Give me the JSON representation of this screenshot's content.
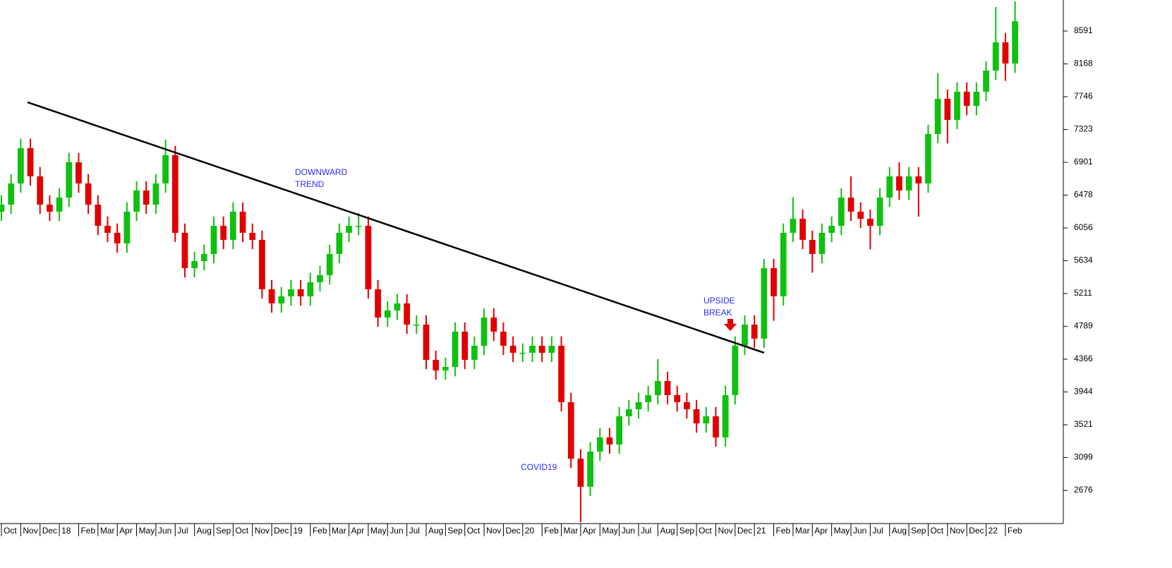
{
  "chart_data": {
    "type": "candlestick",
    "x": [
      0,
      0.5,
      1,
      1.5,
      2,
      2.5,
      3,
      3.5,
      4,
      4.5,
      5,
      5.5,
      6,
      6.5,
      7,
      7.5,
      8,
      8.5,
      9,
      9.5,
      10,
      10.5,
      11,
      11.5,
      12,
      12.5,
      13,
      13.5,
      14,
      14.5,
      15,
      15.5,
      16,
      16.5,
      17,
      17.5,
      18,
      18.5,
      19,
      19.5,
      20,
      20.5,
      21,
      21.5,
      22,
      22.5,
      23,
      23.5,
      24,
      24.5,
      25,
      25.5,
      26,
      26.5,
      27,
      27.5,
      28,
      28.5,
      29,
      29.5,
      30,
      30.5,
      31,
      31.5,
      32,
      32.5,
      33,
      33.5,
      34,
      34.5,
      35,
      35.5,
      36,
      36.5,
      37,
      37.5,
      38,
      38.5,
      39,
      39.5,
      40,
      40.5,
      41,
      41.5,
      42,
      42.5,
      43,
      43.5,
      44,
      44.5,
      45,
      45.5,
      46,
      46.5,
      47,
      47.5,
      48,
      48.5,
      49,
      49.5,
      50,
      50.5,
      51,
      51.5,
      52,
      52.5
    ],
    "open": [
      6265,
      6356,
      6629,
      7083,
      6720,
      6356,
      6265,
      6447,
      6901,
      6629,
      6356,
      6083,
      5993,
      5856,
      6265,
      6538,
      6356,
      6629,
      6992,
      5993,
      5538,
      5629,
      5720,
      6083,
      5902,
      6265,
      5993,
      5902,
      5266,
      5084,
      5175,
      5266,
      5175,
      5357,
      5447,
      5720,
      5993,
      6083,
      6083,
      5266,
      4902,
      4993,
      5084,
      4811,
      4811,
      4357,
      4221,
      4266,
      4720,
      4357,
      4539,
      4902,
      4720,
      4539,
      4448,
      4448,
      4539,
      4448,
      4539,
      3812,
      3085,
      2722,
      3176,
      3358,
      3267,
      3630,
      3721,
      3812,
      3903,
      4085,
      3903,
      3812,
      3721,
      3539,
      3630,
      3358,
      3903,
      4539,
      4811,
      4630,
      5538,
      5175,
      5993,
      6174,
      5902,
      5720,
      5993,
      6083,
      6447,
      6265,
      6174,
      6083,
      6447,
      6720,
      6538,
      6720,
      6629,
      7265,
      7719,
      7447,
      7810,
      7628,
      7810,
      8082,
      8446,
      8173
    ],
    "high": [
      6476,
      6749,
      7203,
      7203,
      6840,
      6476,
      6567,
      7021,
      7021,
      6749,
      6476,
      6203,
      6113,
      6385,
      6658,
      6658,
      6749,
      7192,
      7112,
      6113,
      5749,
      5840,
      6203,
      6203,
      6385,
      6385,
      6113,
      6022,
      5386,
      5295,
      5386,
      5386,
      5477,
      5567,
      5840,
      6113,
      6203,
      6250,
      6203,
      5386,
      5113,
      5204,
      5204,
      4931,
      4931,
      4477,
      4386,
      4840,
      4840,
      4659,
      5022,
      5022,
      4840,
      4659,
      4568,
      4659,
      4659,
      4659,
      4659,
      3932,
      3205,
      3296,
      3478,
      3478,
      3750,
      3841,
      3932,
      4023,
      4366,
      4205,
      4023,
      3932,
      3841,
      3750,
      3750,
      4023,
      4659,
      4931,
      4931,
      5658,
      5658,
      6113,
      6450,
      6294,
      6022,
      6113,
      6203,
      6567,
      6720,
      6385,
      6294,
      6567,
      6840,
      6901,
      6840,
      6840,
      7385,
      8050,
      7839,
      7930,
      7930,
      7930,
      8202,
      8900,
      8566,
      8973
    ],
    "low": [
      6145,
      6236,
      6509,
      6600,
      6236,
      6145,
      6145,
      6327,
      6509,
      6236,
      5963,
      5873,
      5736,
      5736,
      6145,
      6236,
      6236,
      6509,
      5873,
      5418,
      5418,
      5509,
      5600,
      5782,
      5782,
      5873,
      5782,
      5146,
      4964,
      4964,
      5055,
      5055,
      5055,
      5237,
      5327,
      5600,
      5873,
      5963,
      5146,
      4782,
      4782,
      4873,
      4691,
      4691,
      4237,
      4101,
      4101,
      4146,
      4237,
      4237,
      4419,
      4600,
      4419,
      4328,
      4328,
      4328,
      4328,
      4328,
      3692,
      2965,
      2267,
      2602,
      3056,
      3147,
      3147,
      3510,
      3601,
      3692,
      3783,
      3783,
      3692,
      3601,
      3419,
      3419,
      3238,
      3238,
      3783,
      4419,
      4510,
      4510,
      4860,
      5055,
      5873,
      5782,
      5480,
      5600,
      5873,
      5963,
      6145,
      6054,
      5780,
      5963,
      6327,
      6418,
      6418,
      6200,
      6509,
      7145,
      7145,
      7327,
      7508,
      7508,
      7690,
      7962,
      7950,
      8053
    ],
    "close": [
      6356,
      6629,
      7083,
      6720,
      6356,
      6265,
      6447,
      6901,
      6629,
      6356,
      6083,
      5993,
      5856,
      6265,
      6538,
      6356,
      6629,
      6992,
      5993,
      5538,
      5629,
      5720,
      6083,
      5902,
      6265,
      5993,
      5902,
      5266,
      5084,
      5175,
      5266,
      5175,
      5357,
      5447,
      5720,
      5993,
      6083,
      6083,
      5266,
      4902,
      4993,
      5084,
      4811,
      4811,
      4357,
      4221,
      4266,
      4720,
      4357,
      4539,
      4902,
      4720,
      4539,
      4448,
      4448,
      4539,
      4448,
      4539,
      3812,
      3085,
      2722,
      3176,
      3358,
      3267,
      3630,
      3721,
      3812,
      3903,
      4085,
      3903,
      3812,
      3721,
      3539,
      3630,
      3358,
      3903,
      4539,
      4811,
      4630,
      5538,
      5175,
      5993,
      6174,
      5902,
      5720,
      5993,
      6083,
      6447,
      6265,
      6174,
      6083,
      6447,
      6720,
      6538,
      6720,
      6629,
      7265,
      7719,
      7447,
      7810,
      7628,
      7810,
      8082,
      8446,
      8173,
      8718
    ],
    "up_color": "#10c010",
    "down_color": "#e00000",
    "trendline": {
      "x": [
        1.35,
        39.5
      ],
      "values": [
        7674,
        4448
      ],
      "color": "#000000"
    },
    "annotations": [
      {
        "lines": [
          "DOWNWARD",
          "TREND"
        ]
      },
      {
        "lines": [
          "UPSIDE",
          "BREAK"
        ]
      },
      {
        "lines": [
          "COVID19"
        ]
      }
    ],
    "xlim": [
      0,
      55
    ],
    "xticks": [
      {
        "value": 0,
        "label": "Oct"
      },
      {
        "value": 1,
        "label": "Nov"
      },
      {
        "value": 2,
        "label": "Dec"
      },
      {
        "value": 3,
        "label": "18"
      },
      {
        "value": 4,
        "label": "Feb"
      },
      {
        "value": 5,
        "label": "Mar"
      },
      {
        "value": 6,
        "label": "Apr"
      },
      {
        "value": 7,
        "label": "May"
      },
      {
        "value": 8,
        "label": "Jun"
      },
      {
        "value": 9,
        "label": "Jul"
      },
      {
        "value": 10,
        "label": "Aug"
      },
      {
        "value": 11,
        "label": "Sep"
      },
      {
        "value": 12,
        "label": "Oct"
      },
      {
        "value": 13,
        "label": "Nov"
      },
      {
        "value": 14,
        "label": "Dec"
      },
      {
        "value": 15,
        "label": "19"
      },
      {
        "value": 16,
        "label": "Feb"
      },
      {
        "value": 17,
        "label": "Mar"
      },
      {
        "value": 18,
        "label": "Apr"
      },
      {
        "value": 19,
        "label": "May"
      },
      {
        "value": 20,
        "label": "Jun"
      },
      {
        "value": 21,
        "label": "Jul"
      },
      {
        "value": 22,
        "label": "Aug"
      },
      {
        "value": 23,
        "label": "Sep"
      },
      {
        "value": 24,
        "label": "Oct"
      },
      {
        "value": 25,
        "label": "Nov"
      },
      {
        "value": 26,
        "label": "Dec"
      },
      {
        "value": 27,
        "label": "20"
      },
      {
        "value": 28,
        "label": "Feb"
      },
      {
        "value": 29,
        "label": "Mar"
      },
      {
        "value": 30,
        "label": "Apr"
      },
      {
        "value": 31,
        "label": "May"
      },
      {
        "value": 32,
        "label": "Jun"
      },
      {
        "value": 33,
        "label": "Jul"
      },
      {
        "value": 34,
        "label": "Aug"
      },
      {
        "value": 35,
        "label": "Sep"
      },
      {
        "value": 36,
        "label": "Oct"
      },
      {
        "value": 37,
        "label": "Nov"
      },
      {
        "value": 38,
        "label": "Dec"
      },
      {
        "value": 39,
        "label": "21"
      },
      {
        "value": 40,
        "label": "Feb"
      },
      {
        "value": 41,
        "label": "Mar"
      },
      {
        "value": 42,
        "label": "Apr"
      },
      {
        "value": 43,
        "label": "May"
      },
      {
        "value": 44,
        "label": "Jun"
      },
      {
        "value": 45,
        "label": "Jul"
      },
      {
        "value": 46,
        "label": "Aug"
      },
      {
        "value": 47,
        "label": "Sep"
      },
      {
        "value": 48,
        "label": "Oct"
      },
      {
        "value": 49,
        "label": "Nov"
      },
      {
        "value": 50,
        "label": "Dec"
      },
      {
        "value": 51,
        "label": "22"
      },
      {
        "value": 52,
        "label": "Feb"
      }
    ],
    "ylim": [
      2249,
      8991
    ],
    "yticks": [
      2676,
      3099,
      3521,
      3944,
      4366,
      4789,
      5211,
      5634,
      6056,
      6478,
      6901,
      7323,
      7746,
      8168,
      8591
    ]
  }
}
